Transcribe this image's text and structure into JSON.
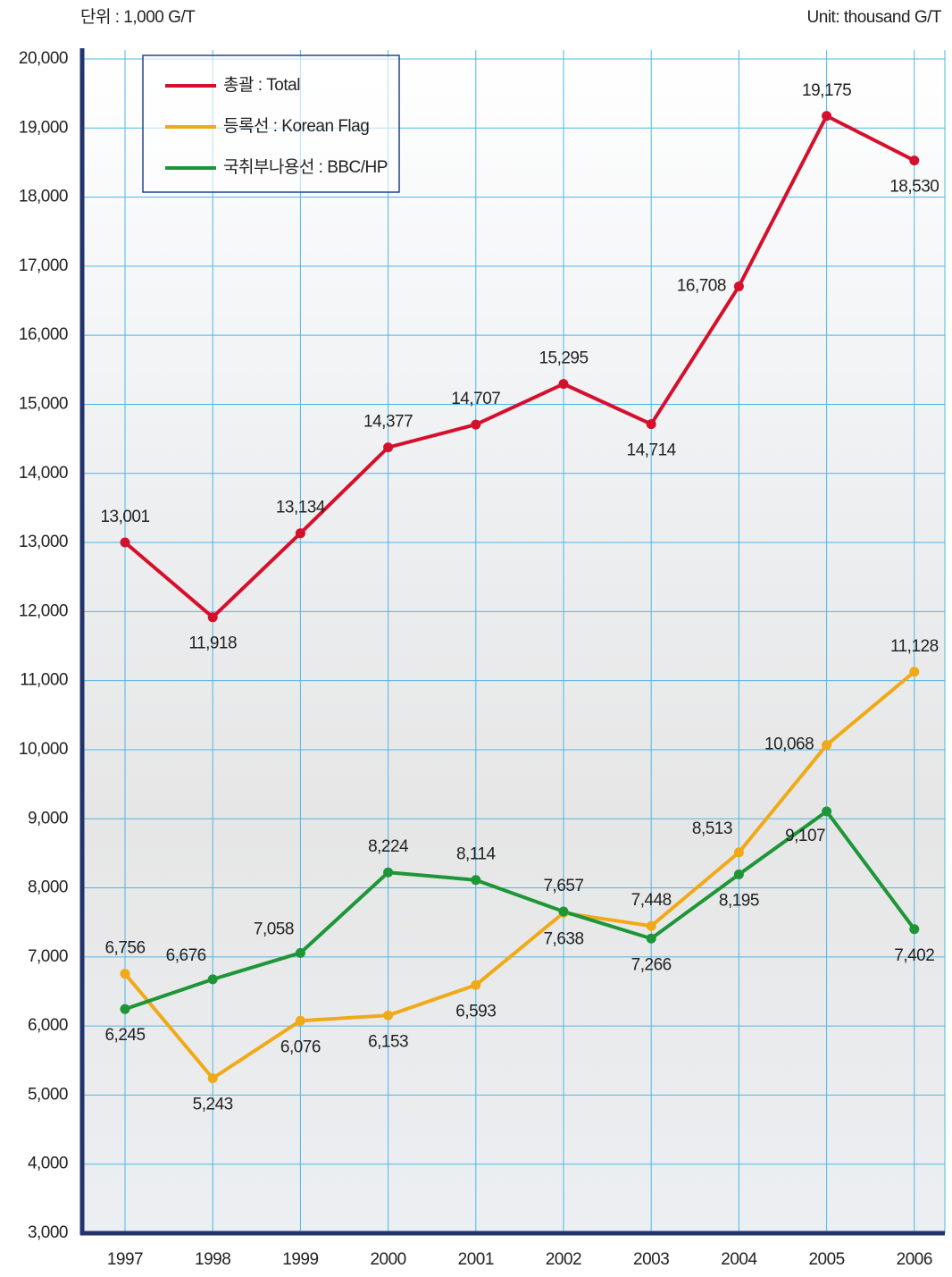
{
  "chart_data": {
    "type": "line",
    "unit_left": "단위 : 1,000 G/T",
    "unit_right": "Unit: thousand G/T",
    "categories": [
      "1997",
      "1998",
      "1999",
      "2000",
      "2001",
      "2002",
      "2003",
      "2004",
      "2005",
      "2006"
    ],
    "series": [
      {
        "name": "총괄 : Total",
        "color": "#d4102c",
        "values": [
          13001,
          11918,
          13134,
          14377,
          14707,
          15295,
          14714,
          16708,
          19175,
          18530
        ],
        "value_labels": [
          "13,001",
          "11,918",
          "13,134",
          "14,377",
          "14,707",
          "15,295",
          "14,714",
          "16,708",
          "19,175",
          "18,530"
        ]
      },
      {
        "name": "등록선 : Korean Flag",
        "color": "#f0aa18",
        "values": [
          6756,
          5243,
          6076,
          6153,
          6593,
          7638,
          7448,
          8513,
          10068,
          11128
        ],
        "value_labels": [
          "6,756",
          "5,243",
          "6,076",
          "6,153",
          "6,593",
          "7,638",
          "7,448",
          "8,513",
          "10,068",
          "11,128"
        ]
      },
      {
        "name": "국취부나용선 : BBC/HP",
        "color": "#1e9638",
        "values": [
          6245,
          6676,
          7058,
          8224,
          8114,
          7657,
          7266,
          8195,
          9107,
          7402
        ],
        "value_labels": [
          "6,245",
          "6,676",
          "7,058",
          "8,224",
          "8,114",
          "7,657",
          "7,266",
          "8,195",
          "9,107",
          "7,402"
        ]
      }
    ],
    "ylim": [
      3000,
      20000
    ],
    "yticks": [
      {
        "value": 3000,
        "label": "3,000"
      },
      {
        "value": 4000,
        "label": "4,000"
      },
      {
        "value": 5000,
        "label": "5,000"
      },
      {
        "value": 6000,
        "label": "6,000"
      },
      {
        "value": 7000,
        "label": "7,000"
      },
      {
        "value": 8000,
        "label": "8,000"
      },
      {
        "value": 9000,
        "label": "9,000"
      },
      {
        "value": 10000,
        "label": "10,000"
      },
      {
        "value": 11000,
        "label": "11,000"
      },
      {
        "value": 12000,
        "label": "12,000"
      },
      {
        "value": 13000,
        "label": "13,000"
      },
      {
        "value": 14000,
        "label": "14,000"
      },
      {
        "value": 15000,
        "label": "15,000"
      },
      {
        "value": 16000,
        "label": "16,000"
      },
      {
        "value": 17000,
        "label": "17,000"
      },
      {
        "value": 18000,
        "label": "18,000"
      },
      {
        "value": 19000,
        "label": "19,000"
      },
      {
        "value": 20000,
        "label": "20,000"
      }
    ],
    "grid": true,
    "legend": "upper left"
  }
}
